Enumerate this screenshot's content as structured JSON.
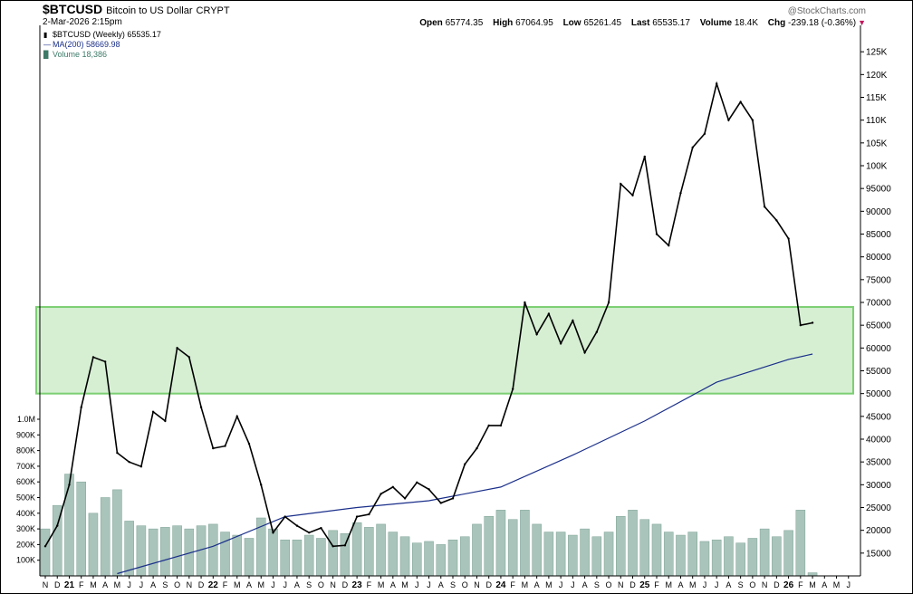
{
  "header": {
    "symbol": "$BTCUSD",
    "name": "Bitcoin to US Dollar",
    "exchange": "CRYPT",
    "datetime": "2-Mar-2026 2:15pm",
    "watermark": "@StockCharts.com",
    "open_label": "Open",
    "open": "65774.35",
    "high_label": "High",
    "high": "67064.95",
    "low_label": "Low",
    "low": "65261.45",
    "last_label": "Last",
    "last": "65535.17",
    "volume_label": "Volume",
    "volume": "18.4K",
    "chg_label": "Chg",
    "chg": "-239.18 (-0.36%)"
  },
  "legend": {
    "price": "$BTCUSD (Weekly) 65535.17",
    "ma": "MA(200) 58669.98",
    "volume": "Volume 18,386"
  },
  "colors": {
    "price": "#000000",
    "ma": "#1a2f8a",
    "volume_bar": "#a9c4ba",
    "volume_edge": "#7fa397",
    "zone_fill": "#cfeccb",
    "zone_edge": "#7ccf73"
  },
  "chart_data": {
    "type": "line",
    "title": "$BTCUSD (Weekly)",
    "price_axis": {
      "min": 10000,
      "max": 130000,
      "ticks": [
        "125K",
        "120K",
        "115K",
        "110K",
        "105K",
        "100K",
        "95000",
        "90000",
        "85000",
        "80000",
        "75000",
        "70000",
        "65000",
        "60000",
        "55000",
        "50000",
        "45000",
        "40000",
        "35000",
        "30000",
        "25000",
        "20000",
        "15000"
      ],
      "tick_values": [
        125000,
        120000,
        115000,
        110000,
        105000,
        100000,
        95000,
        90000,
        85000,
        80000,
        75000,
        70000,
        65000,
        60000,
        55000,
        50000,
        45000,
        40000,
        35000,
        30000,
        25000,
        20000,
        15000
      ]
    },
    "volume_axis": {
      "ticks": [
        "1.0M",
        "900K",
        "800K",
        "700K",
        "600K",
        "500K",
        "400K",
        "300K",
        "200K",
        "100K"
      ],
      "tick_values": [
        1000000,
        900000,
        800000,
        700000,
        600000,
        500000,
        400000,
        300000,
        200000,
        100000
      ]
    },
    "x_axis_labels": [
      "N",
      "D",
      "21",
      "F",
      "M",
      "A",
      "M",
      "J",
      "J",
      "A",
      "S",
      "O",
      "N",
      "D",
      "22",
      "F",
      "M",
      "A",
      "M",
      "J",
      "J",
      "A",
      "S",
      "O",
      "N",
      "D",
      "23",
      "F",
      "M",
      "A",
      "M",
      "J",
      "J",
      "A",
      "S",
      "O",
      "N",
      "D",
      "24",
      "F",
      "M",
      "A",
      "M",
      "J",
      "J",
      "A",
      "S",
      "O",
      "N",
      "D",
      "25",
      "F",
      "M",
      "A",
      "M",
      "J",
      "J",
      "A",
      "S",
      "O",
      "N",
      "D",
      "26",
      "F",
      "M",
      "A",
      "M",
      "J"
    ],
    "x_axis_year_labels": [
      "21",
      "22",
      "23",
      "24",
      "25",
      "26"
    ],
    "support_zone": {
      "low": 50000,
      "high": 69000
    },
    "series": [
      {
        "name": "$BTCUSD (Weekly)",
        "x": [
          "2020-11",
          "2020-12",
          "2021-01",
          "2021-02",
          "2021-03",
          "2021-04",
          "2021-05",
          "2021-06",
          "2021-07",
          "2021-08",
          "2021-09",
          "2021-10",
          "2021-11",
          "2021-12",
          "2022-01",
          "2022-02",
          "2022-03",
          "2022-04",
          "2022-05",
          "2022-06",
          "2022-07",
          "2022-08",
          "2022-09",
          "2022-10",
          "2022-11",
          "2022-12",
          "2023-01",
          "2023-02",
          "2023-03",
          "2023-04",
          "2023-05",
          "2023-06",
          "2023-07",
          "2023-08",
          "2023-09",
          "2023-10",
          "2023-11",
          "2023-12",
          "2024-01",
          "2024-02",
          "2024-03",
          "2024-04",
          "2024-05",
          "2024-06",
          "2024-07",
          "2024-08",
          "2024-09",
          "2024-10",
          "2024-11",
          "2024-12",
          "2025-01",
          "2025-02",
          "2025-03",
          "2025-04",
          "2025-05",
          "2025-06",
          "2025-07",
          "2025-08",
          "2025-09",
          "2025-10",
          "2025-11",
          "2025-12",
          "2026-01",
          "2026-02",
          "2026-03"
        ],
        "values": [
          16500,
          21000,
          30000,
          47000,
          58000,
          57000,
          37000,
          35000,
          34000,
          46000,
          44000,
          60000,
          58000,
          47000,
          38000,
          38500,
          45000,
          39000,
          30000,
          19500,
          23000,
          21000,
          19500,
          20500,
          16500,
          16700,
          23000,
          23500,
          28000,
          29500,
          27000,
          30500,
          29000,
          26000,
          27000,
          34500,
          38000,
          43000,
          43000,
          51000,
          70000,
          63000,
          67500,
          61000,
          66000,
          59000,
          63500,
          70000,
          96000,
          93500,
          102000,
          85000,
          82500,
          94000,
          104000,
          107000,
          118000,
          110000,
          114000,
          110000,
          91000,
          88000,
          84000,
          65000,
          65535
        ]
      },
      {
        "name": "MA(200)",
        "x": [
          "2021-05",
          "2022-01",
          "2022-07",
          "2023-01",
          "2023-07",
          "2024-01",
          "2024-07",
          "2025-01",
          "2025-07",
          "2026-01",
          "2026-03"
        ],
        "values": [
          10500,
          16500,
          23000,
          25000,
          26500,
          29500,
          36500,
          44000,
          52500,
          57500,
          58670
        ]
      }
    ],
    "volume": {
      "name": "Volume",
      "x": [
        "2020-11",
        "2020-12",
        "2021-01",
        "2021-02",
        "2021-03",
        "2021-04",
        "2021-05",
        "2021-06",
        "2021-07",
        "2021-08",
        "2021-09",
        "2021-10",
        "2021-11",
        "2021-12",
        "2022-01",
        "2022-02",
        "2022-03",
        "2022-04",
        "2022-05",
        "2022-06",
        "2022-07",
        "2022-08",
        "2022-09",
        "2022-10",
        "2022-11",
        "2022-12",
        "2023-01",
        "2023-02",
        "2023-03",
        "2023-04",
        "2023-05",
        "2023-06",
        "2023-07",
        "2023-08",
        "2023-09",
        "2023-10",
        "2023-11",
        "2023-12",
        "2024-01",
        "2024-02",
        "2024-03",
        "2024-04",
        "2024-05",
        "2024-06",
        "2024-07",
        "2024-08",
        "2024-09",
        "2024-10",
        "2024-11",
        "2024-12",
        "2025-01",
        "2025-02",
        "2025-03",
        "2025-04",
        "2025-05",
        "2025-06",
        "2025-07",
        "2025-08",
        "2025-09",
        "2025-10",
        "2025-11",
        "2025-12",
        "2026-01",
        "2026-02",
        "2026-03"
      ],
      "values": [
        300000,
        450000,
        650000,
        600000,
        400000,
        500000,
        550000,
        350000,
        320000,
        300000,
        310000,
        320000,
        300000,
        320000,
        330000,
        280000,
        260000,
        240000,
        370000,
        300000,
        230000,
        230000,
        260000,
        240000,
        290000,
        270000,
        340000,
        310000,
        330000,
        280000,
        250000,
        210000,
        220000,
        200000,
        230000,
        250000,
        330000,
        380000,
        420000,
        360000,
        420000,
        330000,
        280000,
        280000,
        260000,
        300000,
        250000,
        280000,
        380000,
        420000,
        360000,
        330000,
        280000,
        260000,
        280000,
        220000,
        230000,
        250000,
        210000,
        240000,
        300000,
        250000,
        290000,
        420000,
        20000
      ]
    }
  }
}
